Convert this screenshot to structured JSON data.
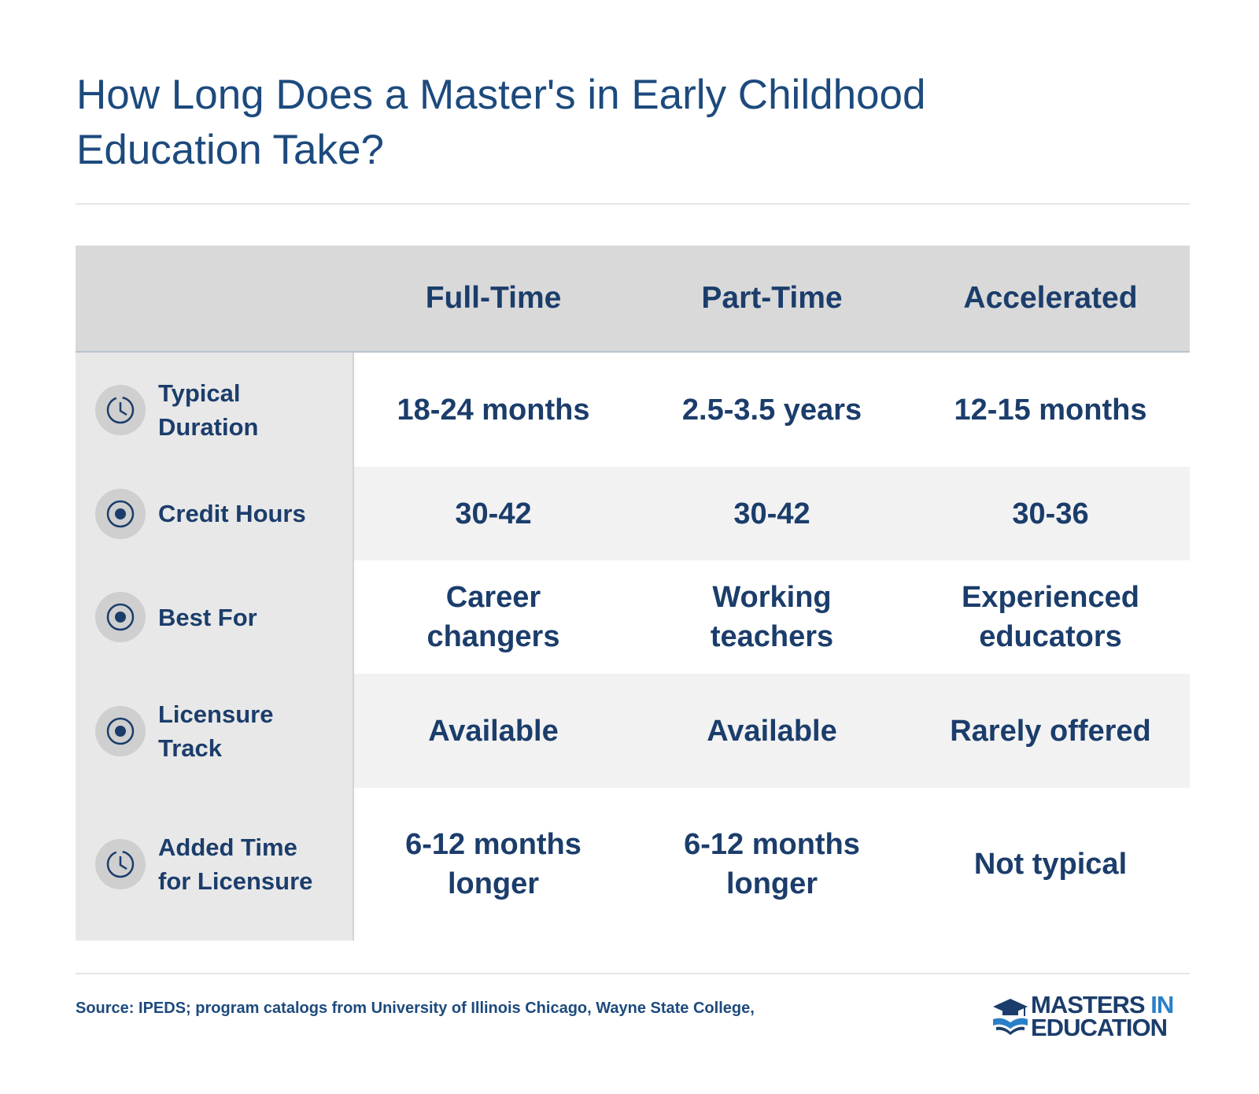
{
  "header": {
    "title": "How Long Does a Master's in Early Childhood Education Take?"
  },
  "table": {
    "columns": [
      "Full-Time",
      "Part-Time",
      "Accelerated"
    ],
    "rows": [
      {
        "label": "Typical Duration",
        "cells": [
          "18-24 months",
          "2.5-3.5 years",
          "12-15 months"
        ]
      },
      {
        "label": "Credit Hours",
        "cells": [
          "30-42",
          "30-42",
          "30-36"
        ]
      },
      {
        "label": "Best For",
        "cells": [
          "Career changers",
          "Working teachers",
          "Experienced educators"
        ]
      },
      {
        "label": "Licensure Track",
        "cells": [
          "Available",
          "Available",
          "Rarely offered"
        ]
      },
      {
        "label": "Added Time for Licensure",
        "cells": [
          "6-12 months longer",
          "6-12 months longer",
          "Not typical"
        ]
      }
    ]
  },
  "footer": {
    "source": "Source: IPEDS; program catalogs from University of Illinois Chicago, Wayne State College,",
    "logo": {
      "word1": "MASTERS",
      "word2": "IN",
      "word3": "EDUCATION"
    }
  }
}
